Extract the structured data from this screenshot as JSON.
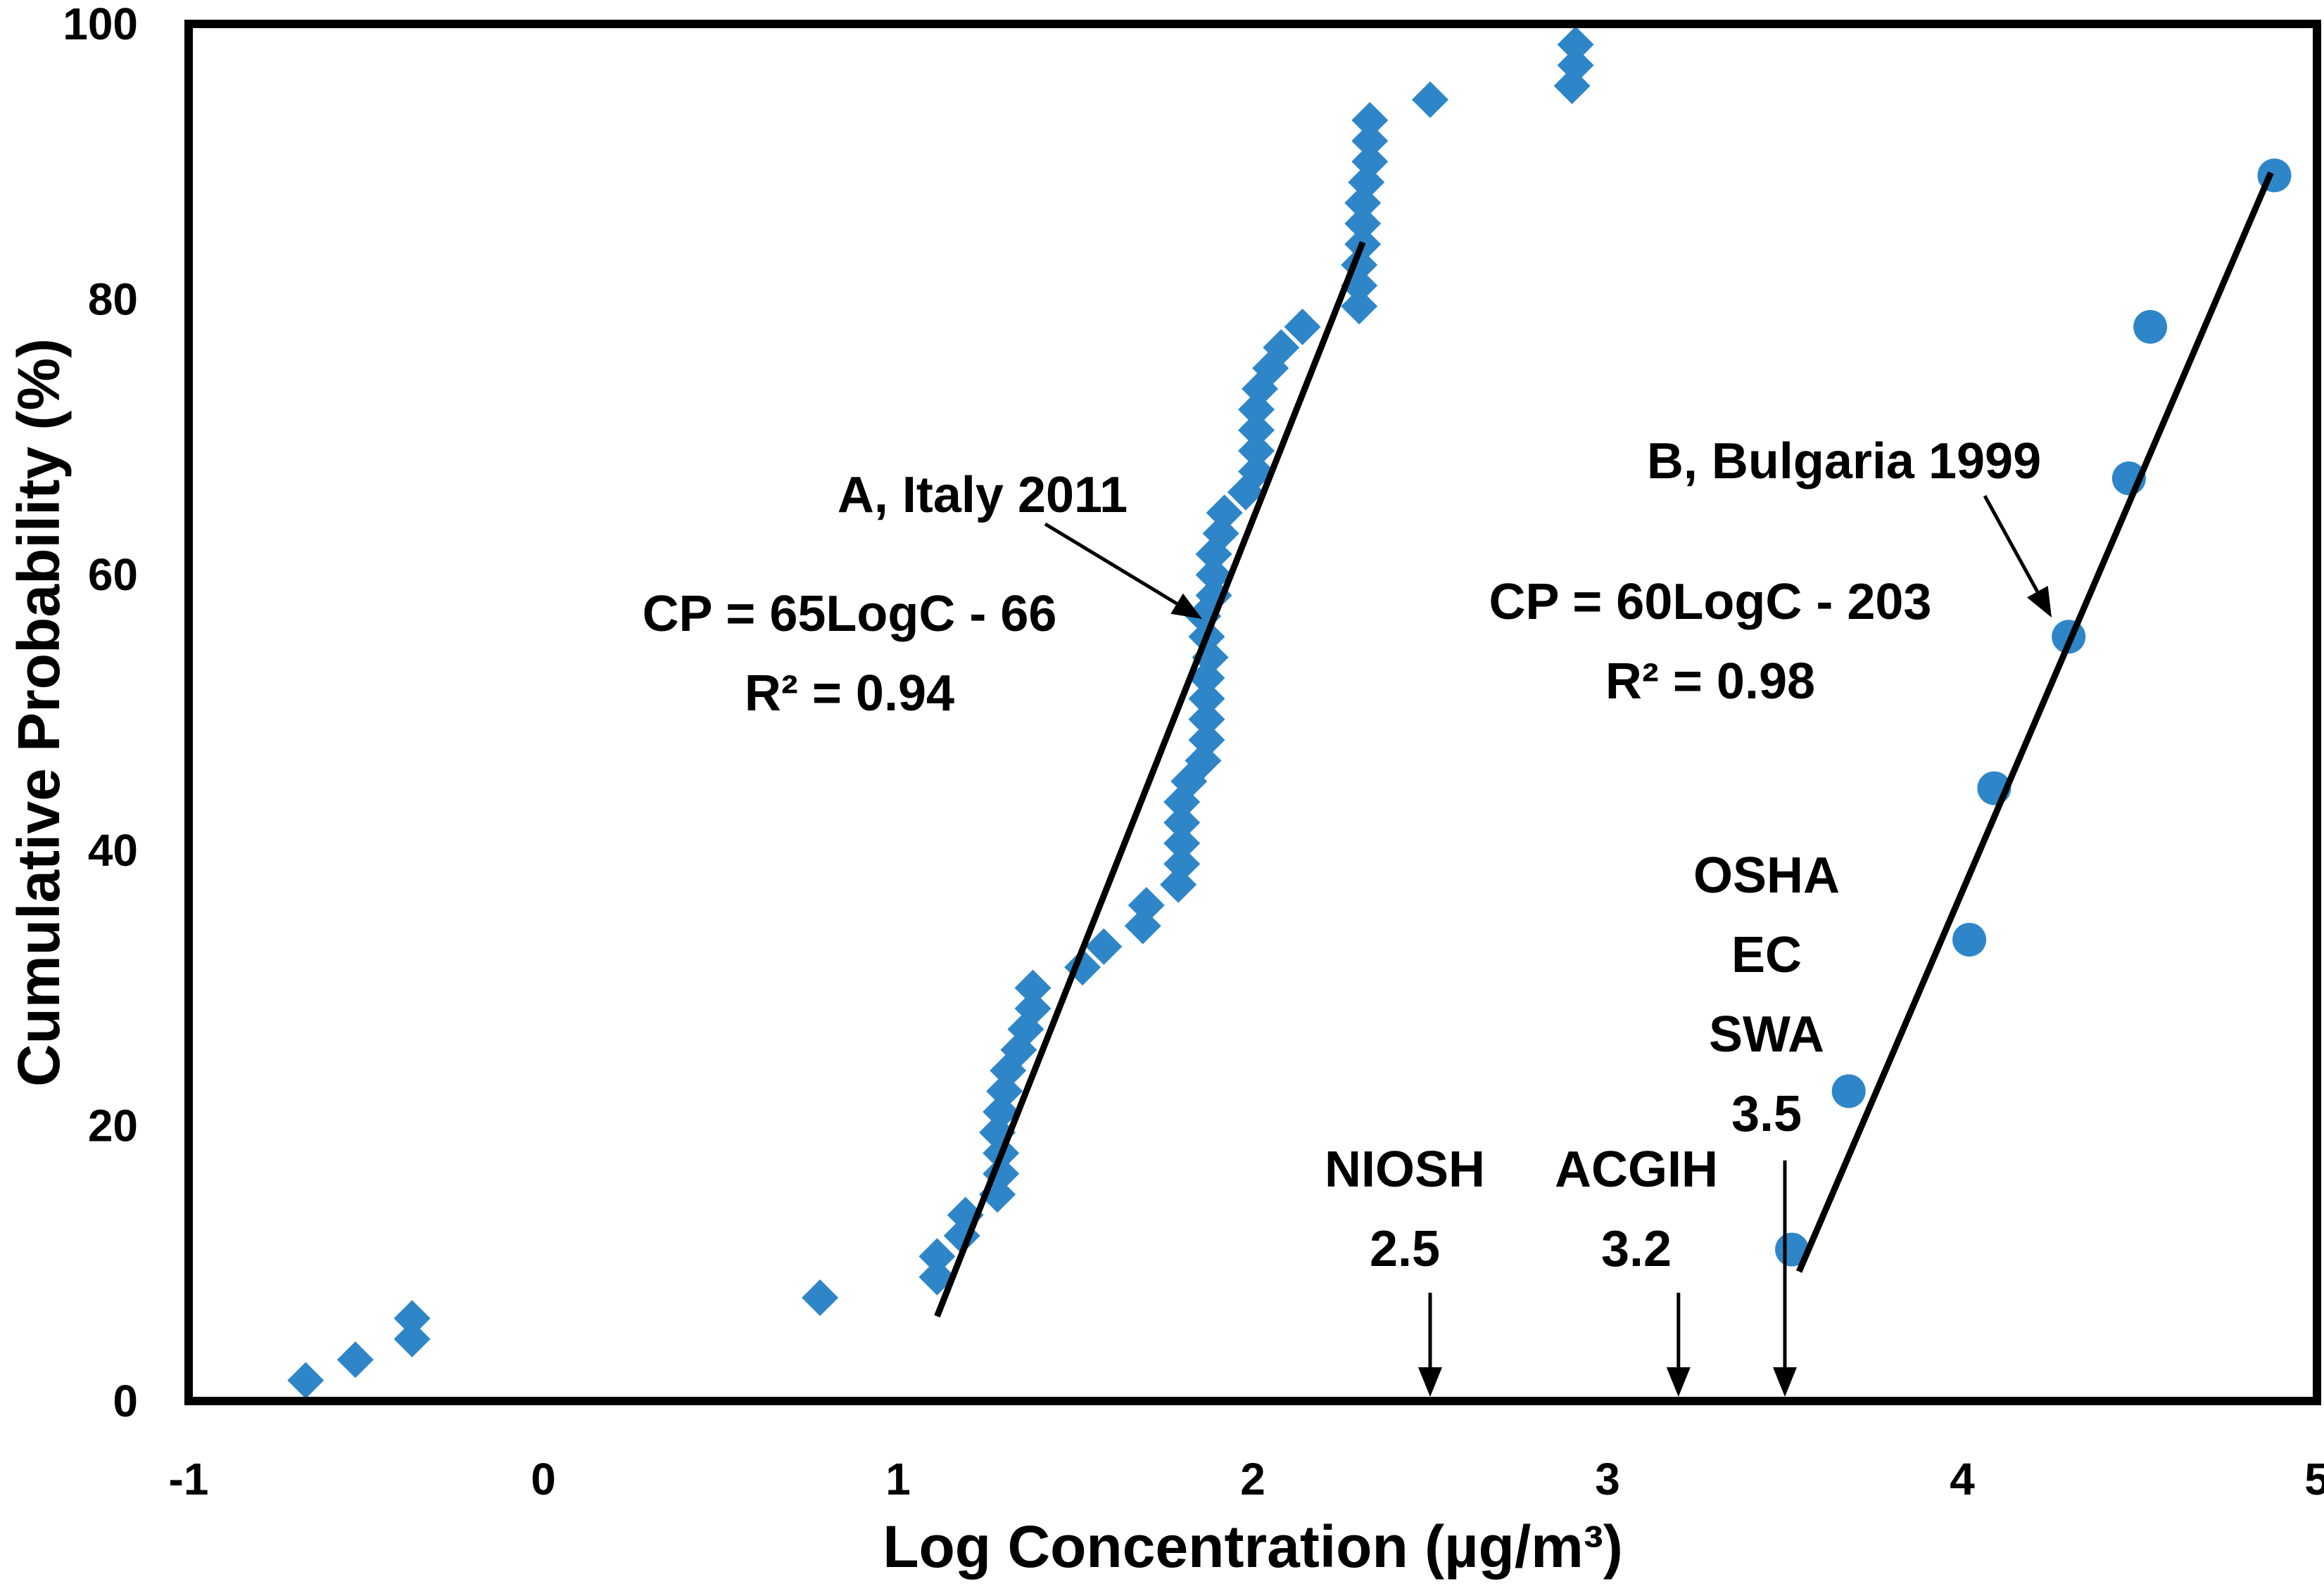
{
  "chart_data": {
    "type": "scatter",
    "xlabel": "Log  Concentration (µg/m³)",
    "ylabel": "Cumulative Probability (%)",
    "xlim": [
      -1,
      5
    ],
    "ylim": [
      0,
      100
    ],
    "xticks": [
      "-1",
      "0",
      "1",
      "2",
      "3",
      "4",
      "5"
    ],
    "yticks": [
      "0",
      "20",
      "40",
      "60",
      "80",
      "100"
    ],
    "colors": {
      "marker": "#2E86C8",
      "line": "#000000",
      "axis": "#000000"
    },
    "series": [
      {
        "name": "A, Italy 2011",
        "marker": "diamond",
        "points": [
          [
            -0.67,
            1.5
          ],
          [
            -0.53,
            3.0
          ],
          [
            -0.37,
            4.5
          ],
          [
            -0.37,
            6.0
          ],
          [
            0.78,
            7.5
          ],
          [
            1.11,
            9.0
          ],
          [
            1.11,
            10.5
          ],
          [
            1.18,
            12.0
          ],
          [
            1.19,
            13.5
          ],
          [
            1.28,
            15.0
          ],
          [
            1.29,
            16.5
          ],
          [
            1.29,
            18.0
          ],
          [
            1.28,
            19.5
          ],
          [
            1.29,
            21.0
          ],
          [
            1.3,
            22.5
          ],
          [
            1.31,
            24.0
          ],
          [
            1.34,
            25.5
          ],
          [
            1.36,
            27.0
          ],
          [
            1.38,
            28.5
          ],
          [
            1.38,
            30.0
          ],
          [
            1.52,
            31.5
          ],
          [
            1.58,
            33.0
          ],
          [
            1.69,
            34.5
          ],
          [
            1.7,
            36.0
          ],
          [
            1.79,
            37.5
          ],
          [
            1.8,
            39.0
          ],
          [
            1.8,
            40.5
          ],
          [
            1.8,
            42.0
          ],
          [
            1.8,
            43.5
          ],
          [
            1.82,
            45.0
          ],
          [
            1.86,
            46.5
          ],
          [
            1.87,
            48.0
          ],
          [
            1.87,
            49.5
          ],
          [
            1.87,
            51.0
          ],
          [
            1.87,
            52.5
          ],
          [
            1.88,
            54.0
          ],
          [
            1.87,
            55.5
          ],
          [
            1.86,
            57.0
          ],
          [
            1.89,
            58.5
          ],
          [
            1.89,
            60.0
          ],
          [
            1.89,
            61.5
          ],
          [
            1.91,
            63.0
          ],
          [
            1.92,
            64.5
          ],
          [
            1.98,
            66.0
          ],
          [
            2.01,
            67.5
          ],
          [
            2.01,
            69.0
          ],
          [
            2.01,
            70.5
          ],
          [
            2.01,
            72.0
          ],
          [
            2.02,
            73.5
          ],
          [
            2.05,
            75.0
          ],
          [
            2.08,
            76.5
          ],
          [
            2.14,
            78.0
          ],
          [
            2.3,
            79.5
          ],
          [
            2.3,
            81.0
          ],
          [
            2.3,
            82.5
          ],
          [
            2.31,
            84.0
          ],
          [
            2.31,
            85.5
          ],
          [
            2.31,
            87.0
          ],
          [
            2.32,
            88.5
          ],
          [
            2.33,
            90.0
          ],
          [
            2.33,
            91.5
          ],
          [
            2.33,
            93.0
          ],
          [
            2.5,
            94.5
          ],
          [
            2.9,
            95.5
          ],
          [
            2.91,
            97.0
          ],
          [
            2.91,
            98.5
          ]
        ],
        "fit": {
          "equation": "CP = 65LogC - 66",
          "r2": "R² = 0.94",
          "x_range": [
            1.11,
            2.31
          ]
        }
      },
      {
        "name": "B, Bulgaria 1999",
        "marker": "circle",
        "points": [
          [
            3.52,
            11.0
          ],
          [
            3.68,
            22.5
          ],
          [
            4.02,
            33.5
          ],
          [
            4.09,
            44.5
          ],
          [
            4.3,
            55.5
          ],
          [
            4.47,
            67.0
          ],
          [
            4.53,
            78.0
          ],
          [
            4.88,
            89.0
          ]
        ],
        "fit": {
          "equation": "CP = 60LogC - 203",
          "r2": "R² = 0.98",
          "x_range": [
            3.54,
            4.87
          ]
        }
      }
    ],
    "thresholds": [
      {
        "lines": [
          "NIOSH",
          "2.5"
        ],
        "x": 2.5
      },
      {
        "lines": [
          "ACGIH",
          "3.2"
        ],
        "x": 3.2
      },
      {
        "lines": [
          "OSHA",
          "EC",
          "SWA",
          "3.5"
        ],
        "x": 3.5
      }
    ]
  }
}
